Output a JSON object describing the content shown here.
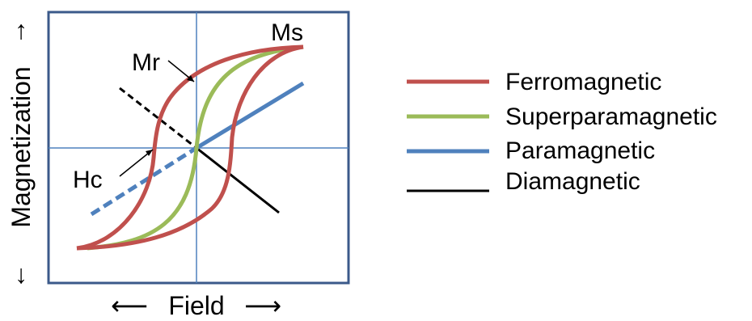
{
  "figure": {
    "axes": {
      "x_label": "Field",
      "y_label": "Magnetization",
      "x_arrow_left": "⟵",
      "x_arrow_right": "⟶",
      "y_arrow_up": "↑",
      "y_arrow_down": "↓"
    },
    "annotations": {
      "ms": "Ms",
      "mr": "Mr",
      "hc": "Hc"
    },
    "legend": [
      {
        "label": "Ferromagnetic",
        "color": "#c0504d"
      },
      {
        "label": "Superparamagnetic",
        "color": "#9bbb59"
      },
      {
        "label": "Paramagnetic",
        "color": "#4f81bd"
      },
      {
        "label": "Diamagnetic",
        "color": "#000000"
      }
    ],
    "colors": {
      "frame": "#3b5a8a",
      "axis_lines": "#4f81bd"
    }
  }
}
